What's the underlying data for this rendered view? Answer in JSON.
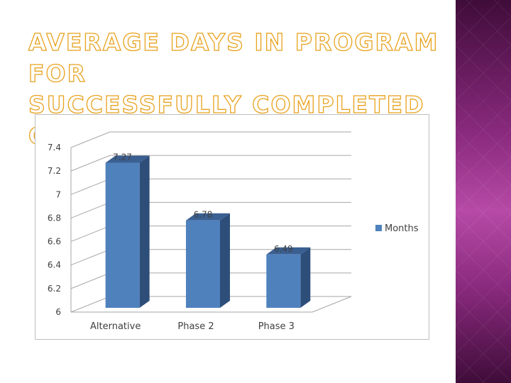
{
  "slide": {
    "title_line1": "AVERAGE DAYS IN PROGRAM FOR",
    "title_line2": "SUCCESSFULLY COMPLETED CASES"
  },
  "colors": {
    "title_outline": "#e8a21e",
    "bar_front": "#4f81bd",
    "bar_side": "#2e4e7a",
    "bar_top": "#3a5f91",
    "band": "#8a2a7e"
  },
  "chart_data": {
    "type": "bar",
    "title": "",
    "xlabel": "",
    "ylabel": "",
    "categories": [
      "Alternative",
      "Phase 2",
      "Phase 3"
    ],
    "series": [
      {
        "name": "Months",
        "values": [
          7.27,
          6.78,
          6.49
        ]
      }
    ],
    "data_labels": [
      "7.27",
      "6.78",
      "6.49"
    ],
    "y_ticks": [
      6,
      6.2,
      6.4,
      6.6,
      6.8,
      7,
      7.2,
      7.4
    ],
    "y_tick_labels": [
      "6",
      "6.2",
      "6.4",
      "6.6",
      "6.8",
      "7",
      "7.2",
      "7.4"
    ],
    "ylim": [
      6,
      7.4
    ],
    "grid": true,
    "legend": "right",
    "style": "3d-column"
  }
}
